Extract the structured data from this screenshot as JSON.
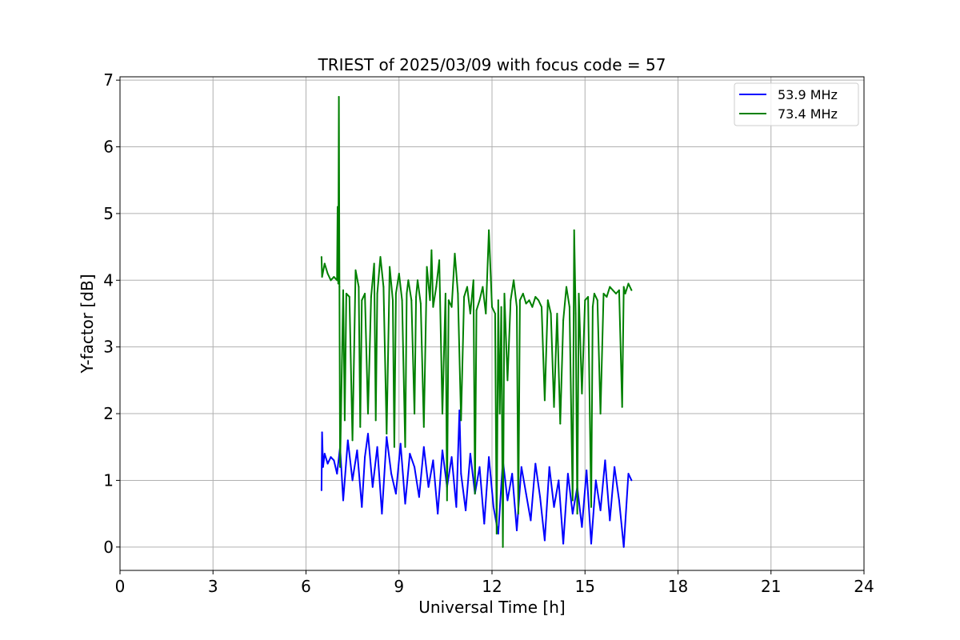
{
  "chart_data": {
    "type": "line",
    "title": "TRIEST of 2025/03/09 with focus code = 57",
    "xlabel": "Universal Time [h]",
    "ylabel": "Y-factor [dB]",
    "xlim": [
      0,
      24
    ],
    "ylim": [
      -0.35,
      7.05
    ],
    "xticks": [
      "0",
      "3",
      "6",
      "9",
      "12",
      "15",
      "18",
      "21",
      "24"
    ],
    "yticks": [
      "0",
      "1",
      "2",
      "3",
      "4",
      "5",
      "6",
      "7"
    ],
    "grid": true,
    "legend_position": "top-right",
    "series": [
      {
        "name": "53.9 MHz",
        "color": "#0000ff",
        "x": [
          6.5,
          6.52,
          6.55,
          6.6,
          6.7,
          6.8,
          6.9,
          7.0,
          7.1,
          7.2,
          7.35,
          7.5,
          7.65,
          7.8,
          7.9,
          8.0,
          8.15,
          8.3,
          8.45,
          8.6,
          8.75,
          8.9,
          9.05,
          9.2,
          9.35,
          9.5,
          9.65,
          9.8,
          9.95,
          10.1,
          10.25,
          10.4,
          10.55,
          10.7,
          10.85,
          10.95,
          11.0,
          11.15,
          11.3,
          11.45,
          11.6,
          11.75,
          11.9,
          12.05,
          12.2,
          12.35,
          12.5,
          12.65,
          12.8,
          12.95,
          13.1,
          13.25,
          13.4,
          13.55,
          13.7,
          13.85,
          14.0,
          14.15,
          14.3,
          14.45,
          14.6,
          14.75,
          14.9,
          15.05,
          15.2,
          15.35,
          15.5,
          15.65,
          15.8,
          15.95,
          16.1,
          16.25,
          16.4,
          16.5
        ],
        "y": [
          0.85,
          1.72,
          1.2,
          1.4,
          1.25,
          1.35,
          1.3,
          1.1,
          1.5,
          0.7,
          1.6,
          1.0,
          1.45,
          0.6,
          1.35,
          1.7,
          0.9,
          1.5,
          0.5,
          1.65,
          1.1,
          0.8,
          1.55,
          0.65,
          1.4,
          1.2,
          0.75,
          1.5,
          0.9,
          1.3,
          0.5,
          1.45,
          0.9,
          1.35,
          0.6,
          2.05,
          1.1,
          0.55,
          1.4,
          0.8,
          1.2,
          0.35,
          1.35,
          0.6,
          0.2,
          1.3,
          0.7,
          1.1,
          0.25,
          1.2,
          0.8,
          0.4,
          1.25,
          0.75,
          0.1,
          1.2,
          0.6,
          1.0,
          0.05,
          1.1,
          0.5,
          0.9,
          0.3,
          1.15,
          0.05,
          1.0,
          0.55,
          1.3,
          0.4,
          1.2,
          0.7,
          0.0,
          1.1,
          1.0
        ]
      },
      {
        "name": "73.4 MHz",
        "color": "#008000",
        "x": [
          6.5,
          6.52,
          6.6,
          6.7,
          6.8,
          6.9,
          7.0,
          7.02,
          7.04,
          7.06,
          7.08,
          7.1,
          7.2,
          7.25,
          7.3,
          7.4,
          7.5,
          7.6,
          7.7,
          7.75,
          7.8,
          7.9,
          8.0,
          8.1,
          8.2,
          8.25,
          8.3,
          8.4,
          8.5,
          8.6,
          8.7,
          8.8,
          8.85,
          8.9,
          9.0,
          9.1,
          9.2,
          9.25,
          9.3,
          9.4,
          9.5,
          9.55,
          9.6,
          9.7,
          9.8,
          9.9,
          10.0,
          10.05,
          10.1,
          10.2,
          10.3,
          10.4,
          10.5,
          10.55,
          10.6,
          10.7,
          10.8,
          10.9,
          11.0,
          11.1,
          11.2,
          11.3,
          11.4,
          11.45,
          11.5,
          11.6,
          11.7,
          11.8,
          11.9,
          12.0,
          12.1,
          12.15,
          12.2,
          12.25,
          12.3,
          12.35,
          12.4,
          12.5,
          12.6,
          12.7,
          12.8,
          12.85,
          12.9,
          13.0,
          13.1,
          13.2,
          13.3,
          13.4,
          13.5,
          13.6,
          13.7,
          13.8,
          13.9,
          14.0,
          14.1,
          14.2,
          14.3,
          14.4,
          14.5,
          14.6,
          14.65,
          14.7,
          14.75,
          14.8,
          14.9,
          15.0,
          15.1,
          15.2,
          15.25,
          15.3,
          15.4,
          15.5,
          15.6,
          15.7,
          15.8,
          15.9,
          16.0,
          16.1,
          16.2,
          16.25,
          16.3,
          16.4,
          16.5
        ],
        "y": [
          4.35,
          4.05,
          4.25,
          4.1,
          4.0,
          4.05,
          4.0,
          5.1,
          3.95,
          6.75,
          3.9,
          1.2,
          3.85,
          1.9,
          3.8,
          3.75,
          1.6,
          4.15,
          3.9,
          1.8,
          3.7,
          3.8,
          2.0,
          3.75,
          4.25,
          1.9,
          3.8,
          4.35,
          3.9,
          1.7,
          4.2,
          3.7,
          1.5,
          3.8,
          4.1,
          3.7,
          1.5,
          3.8,
          4.0,
          3.7,
          2.0,
          3.75,
          4.0,
          3.65,
          1.8,
          4.2,
          3.7,
          4.45,
          3.6,
          3.9,
          4.3,
          2.0,
          3.8,
          0.7,
          3.7,
          3.6,
          4.4,
          3.8,
          1.9,
          3.75,
          3.9,
          3.5,
          4.0,
          0.8,
          3.55,
          3.7,
          3.9,
          3.5,
          4.75,
          3.6,
          3.5,
          0.2,
          3.7,
          2.0,
          3.6,
          0.0,
          3.8,
          2.5,
          3.7,
          4.0,
          3.6,
          0.5,
          3.7,
          3.8,
          3.65,
          3.7,
          3.6,
          3.75,
          3.7,
          3.6,
          2.2,
          3.7,
          3.5,
          2.1,
          3.5,
          1.85,
          3.4,
          3.9,
          3.6,
          0.7,
          4.75,
          3.5,
          0.5,
          3.8,
          2.3,
          3.7,
          3.75,
          0.6,
          3.6,
          3.8,
          3.7,
          2.0,
          3.8,
          3.75,
          3.9,
          3.85,
          3.8,
          3.85,
          2.1,
          3.9,
          3.8,
          3.95,
          3.85
        ]
      }
    ]
  }
}
